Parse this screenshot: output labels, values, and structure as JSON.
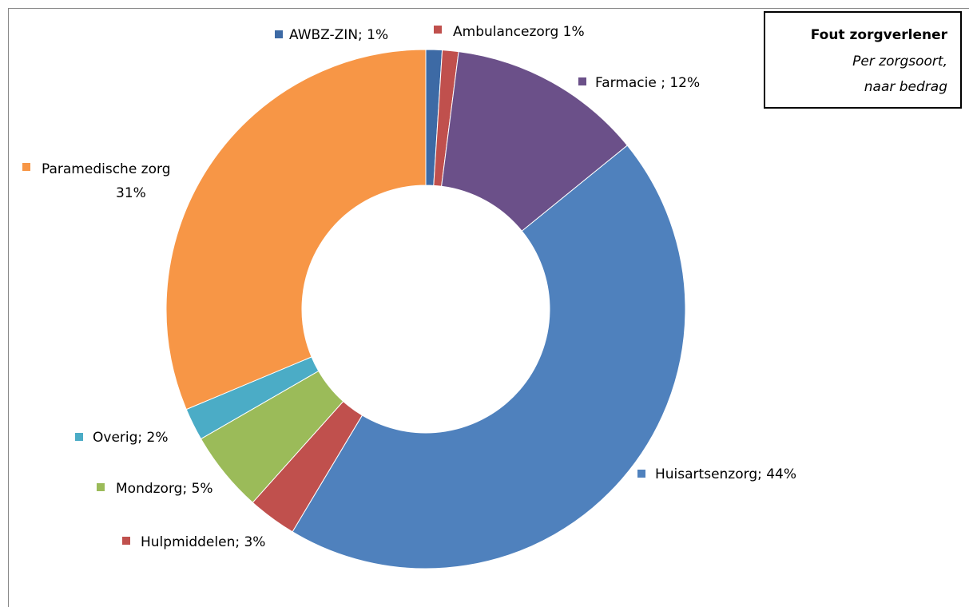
{
  "chart_data": {
    "type": "donut",
    "title": "Fout zorgverlener",
    "subtitle": [
      "Per zorgsoort,",
      "naar bedrag"
    ],
    "categories": [
      "AWBZ-ZIN; 1%",
      "Ambulancezorg 1%",
      "Farmacie ; 12%",
      "Huisartsenzorg; 44%",
      "Hulpmiddelen; 3%",
      "Mondzorg; 5%",
      "Overig; 2%",
      "Paramedische zorg 31%"
    ],
    "values": [
      1,
      1,
      12,
      44,
      3,
      5,
      2,
      31
    ],
    "colors": [
      "#3d6aa5",
      "#c0504d",
      "#6b5089",
      "#4f81bd",
      "#c0504d",
      "#9bbb59",
      "#4bacc6",
      "#f79646"
    ]
  }
}
